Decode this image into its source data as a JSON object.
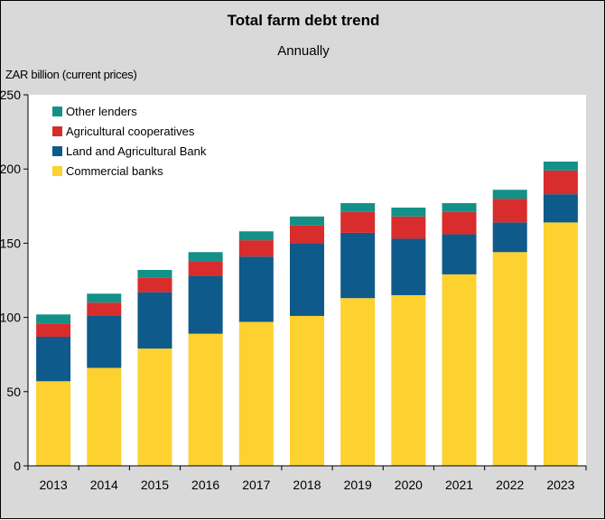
{
  "chart_data": {
    "type": "bar",
    "stacked": true,
    "title": "Total farm debt trend",
    "subtitle": "Annually",
    "ylabel": "ZAR billion (current prices)",
    "xlabel": "",
    "ylim": [
      0,
      250
    ],
    "yticks": [
      0,
      50,
      100,
      150,
      200,
      250
    ],
    "categories": [
      "2013",
      "2014",
      "2015",
      "2016",
      "2017",
      "2018",
      "2019",
      "2020",
      "2021",
      "2022",
      "2023"
    ],
    "series": [
      {
        "name": "Commercial banks",
        "color": "#fdd12f",
        "values": [
          57,
          66,
          79,
          89,
          97,
          101,
          113,
          115,
          129,
          144,
          164
        ]
      },
      {
        "name": "Land and Agricultural Bank",
        "color": "#0e5a8a",
        "values": [
          30,
          35,
          38,
          39,
          44,
          49,
          44,
          38,
          27,
          20,
          19
        ]
      },
      {
        "name": "Agricultural cooperatives",
        "color": "#d92c2c",
        "values": [
          9,
          9,
          10,
          10,
          11,
          12,
          14,
          15,
          15,
          16,
          16
        ]
      },
      {
        "name": "Other lenders",
        "color": "#139188",
        "values": [
          6,
          6,
          5,
          6,
          6,
          6,
          6,
          6,
          6,
          6,
          6
        ]
      }
    ],
    "legend": {
      "placement": "top-left",
      "order": [
        "Other lenders",
        "Agricultural cooperatives",
        "Land and Agricultural Bank",
        "Commercial banks"
      ]
    },
    "grid": false
  }
}
